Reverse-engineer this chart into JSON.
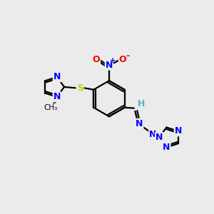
{
  "bg_color": "#ebebeb",
  "bond_color": "#000000",
  "line_width": 1.6,
  "atom_colors": {
    "N": "#0000ff",
    "O": "#ff0000",
    "S": "#cccc00",
    "H": "#4db8b8",
    "C": "#000000"
  },
  "font_size_atom": 9,
  "font_size_small": 7.5
}
